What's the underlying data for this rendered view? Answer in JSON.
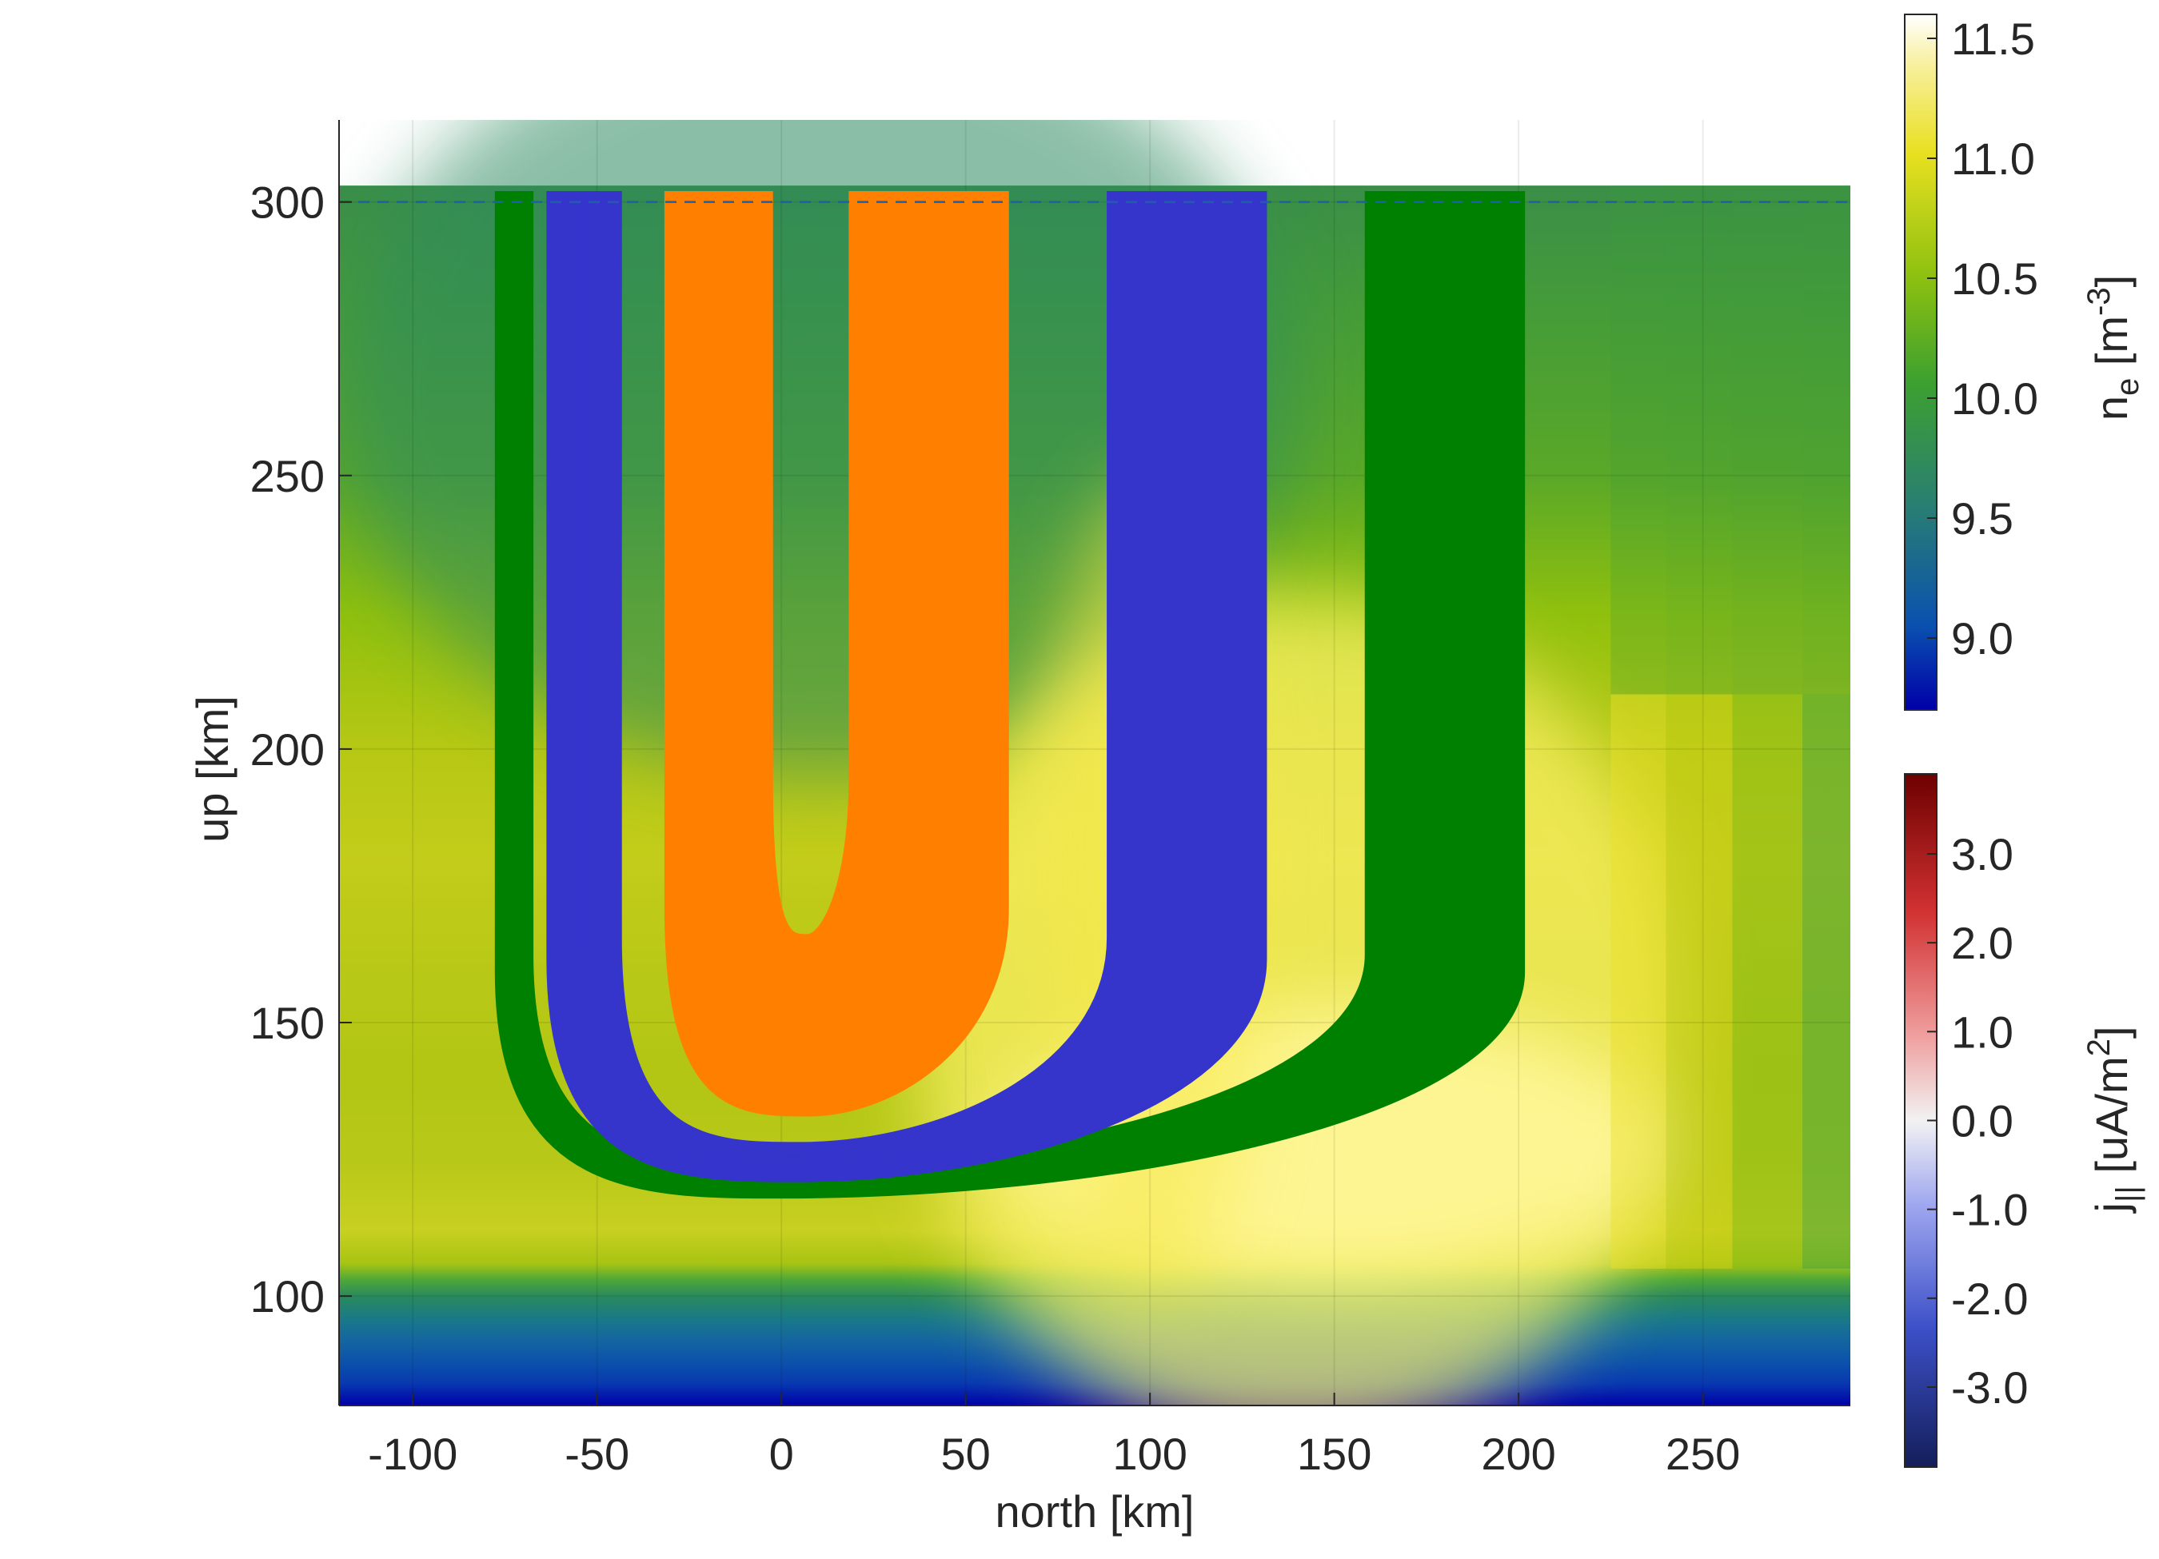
{
  "chart_data": [
    {
      "type": "heatmap",
      "title": "",
      "xlabel": "north [km]",
      "ylabel": "up [km]",
      "xlim": [
        -120,
        290
      ],
      "ylim": [
        80,
        315
      ],
      "x_ticks": [
        -100,
        -50,
        0,
        50,
        100,
        150,
        200,
        250
      ],
      "y_ticks": [
        100,
        150,
        200,
        250,
        300
      ],
      "x_tick_labels": [
        "-100",
        "-50",
        "0",
        "50",
        "100",
        "150",
        "200",
        "250"
      ],
      "y_tick_labels": [
        "100",
        "150",
        "200",
        "250",
        "300"
      ],
      "grid": true,
      "background_field": "log10 n_e",
      "reference_line": {
        "up": 300,
        "style": "dashed",
        "color": "#1f5fa8"
      },
      "field_line_bundles": [
        {
          "color": "#008000",
          "left": {
            "start_x": -76,
            "end_x": -69
          },
          "right": {
            "start_x": 160,
            "end_x": 200
          },
          "bottom_outer": 119,
          "bottom_inner": 123,
          "bottom_x": 0,
          "top": 302
        },
        {
          "color": "#3535cc",
          "left": {
            "start_x": -62,
            "end_x": -45
          },
          "right": {
            "start_x": 90,
            "end_x": 130
          },
          "bottom_outer": 122,
          "bottom_inner": 127,
          "bottom_x": 5,
          "top": 302
        },
        {
          "color": "#ff8000",
          "left": {
            "start_x": -30,
            "end_x": -4
          },
          "right": {
            "start_x": 20,
            "end_x": 60
          },
          "bottom_outer": 134,
          "bottom_inner": 165,
          "bottom_x": 7,
          "top": 302
        }
      ]
    },
    {
      "type": "colorbar",
      "label": "n_e [m^-3]",
      "range": [
        8.7,
        11.6
      ],
      "ticks": [
        9.0,
        9.5,
        10.0,
        10.5,
        11.0,
        11.5
      ],
      "tick_labels": [
        "9.0",
        "9.5",
        "10.0",
        "10.5",
        "11.0",
        "11.5"
      ],
      "colors": [
        "#0000a8",
        "#0a50b0",
        "#2a8070",
        "#3ca030",
        "#8cc010",
        "#e8e020",
        "#f8f0a0",
        "#ffffff"
      ]
    },
    {
      "type": "colorbar",
      "label": "j_|| [uA/m^2]",
      "range": [
        -3.9,
        3.9
      ],
      "ticks": [
        -3.0,
        -2.0,
        -1.0,
        0.0,
        1.0,
        2.0,
        3.0
      ],
      "tick_labels": [
        "-3.0",
        "-2.0",
        "-1.0",
        "0.0",
        "1.0",
        "2.0",
        "3.0"
      ],
      "colors": [
        "#141e5a",
        "#3c50c8",
        "#a0a8f0",
        "#f2f2f2",
        "#f0a0a0",
        "#d23232",
        "#6e0000"
      ]
    }
  ],
  "labels": {
    "xlabel": "north [km]",
    "ylabel": "up [km]",
    "ne_label_main": "n",
    "ne_label_sub": "e",
    "ne_label_unit": " [m",
    "ne_label_sup": "-3",
    "ne_label_close": "]",
    "j_label_main": "j",
    "j_label_sub": "||",
    "j_label_unit": " [uA/m",
    "j_label_sup": "2",
    "j_label_close": "]"
  }
}
